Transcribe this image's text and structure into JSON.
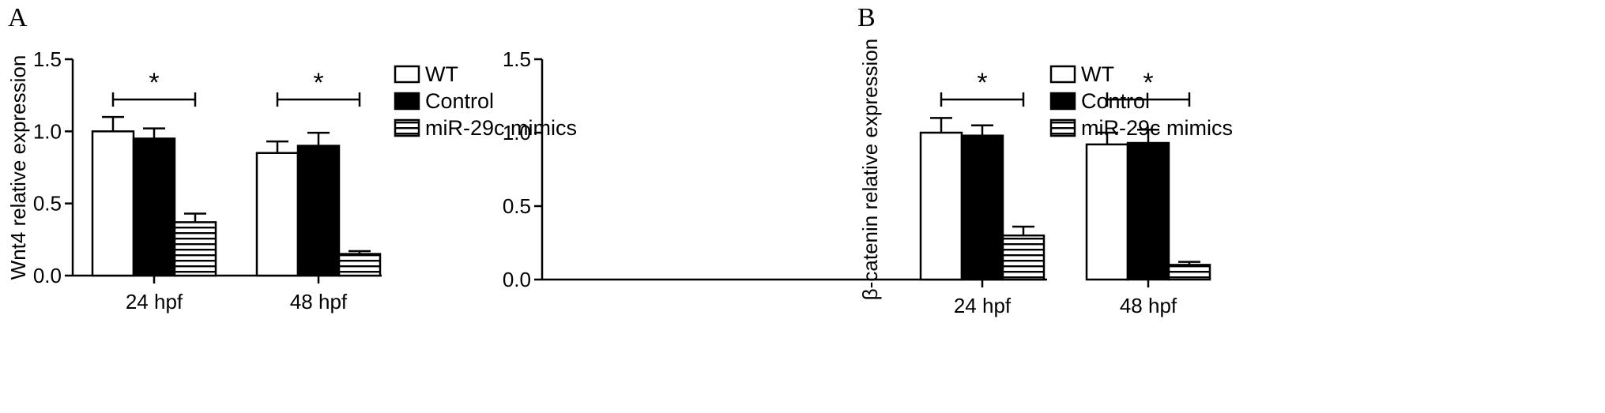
{
  "chart_data": [
    {
      "panel": "A",
      "type": "bar",
      "ylabel": "Wnt4 relative expression",
      "ylim": [
        0,
        1.5
      ],
      "yticks": [
        "0.0",
        "0.5",
        "1.0",
        "1.5"
      ],
      "categories": [
        "24 hpf",
        "48 hpf"
      ],
      "series": [
        {
          "name": "WT",
          "values": [
            1.0,
            0.85
          ],
          "errors": [
            0.1,
            0.08
          ]
        },
        {
          "name": "Control",
          "values": [
            0.95,
            0.9
          ],
          "errors": [
            0.07,
            0.09
          ]
        },
        {
          "name": "miR-29c mimics",
          "values": [
            0.37,
            0.15
          ],
          "errors": [
            0.06,
            0.02
          ]
        }
      ],
      "significance": [
        "*",
        "*"
      ],
      "legend": "right"
    },
    {
      "panel": "B",
      "type": "bar",
      "ylabel": "β-catenin relative expression",
      "ylim": [
        0,
        1.5
      ],
      "yticks": [
        "0.0",
        "0.5",
        "1.0",
        "1.5"
      ],
      "categories": [
        "24 hpf",
        "48 hpf"
      ],
      "series": [
        {
          "name": "WT",
          "values": [
            1.0,
            0.92
          ],
          "errors": [
            0.1,
            0.08
          ]
        },
        {
          "name": "Control",
          "values": [
            0.98,
            0.93
          ],
          "errors": [
            0.07,
            0.09
          ]
        },
        {
          "name": "miR-29c mimics",
          "values": [
            0.3,
            0.1
          ],
          "errors": [
            0.06,
            0.02
          ]
        }
      ],
      "significance": [
        "*",
        "*"
      ],
      "legend": "right"
    }
  ]
}
